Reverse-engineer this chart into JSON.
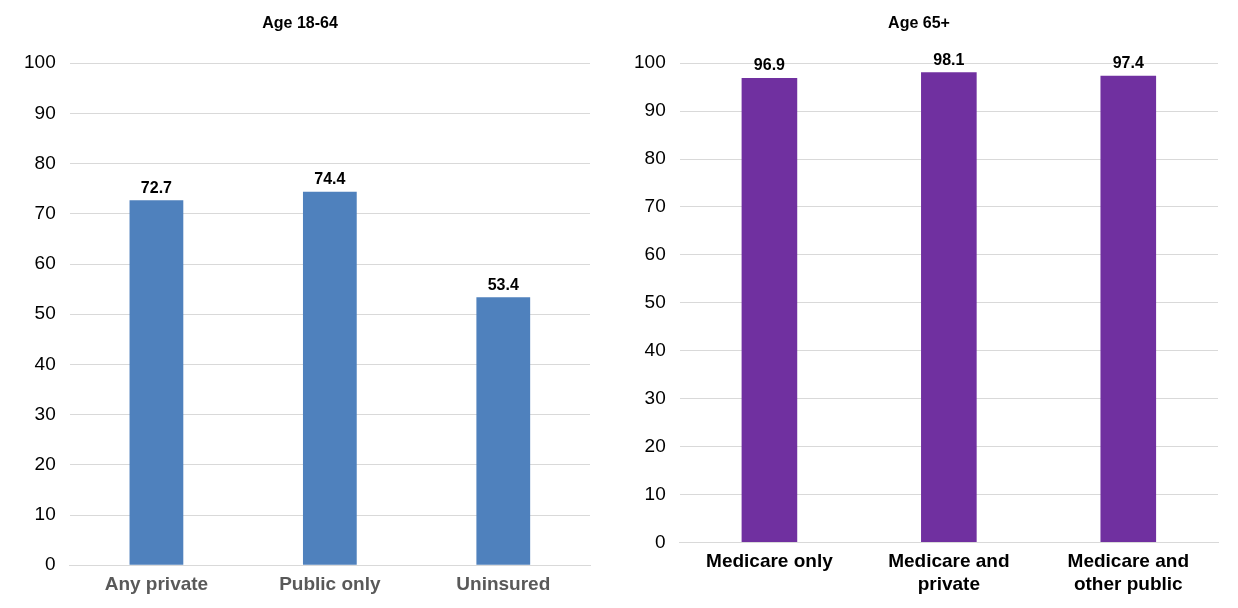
{
  "chart_data": [
    {
      "type": "bar",
      "title": "Age 18-64",
      "categories": [
        "Any private",
        "Public only",
        "Uninsured"
      ],
      "values": [
        72.7,
        74.4,
        53.4
      ],
      "color": "#4f81bd",
      "ylim": [
        0,
        100
      ],
      "yticks": [
        0,
        10,
        20,
        30,
        40,
        50,
        60,
        70,
        80,
        90,
        100
      ],
      "grid": "y",
      "data_labels": true
    },
    {
      "type": "bar",
      "title": "Age 65+",
      "categories": [
        "Medicare only",
        "Medicare and private",
        "Medicare and other public"
      ],
      "values": [
        96.9,
        98.1,
        97.4
      ],
      "color": "#7030a0",
      "ylim": [
        0,
        100
      ],
      "yticks": [
        0,
        10,
        20,
        30,
        40,
        50,
        60,
        70,
        80,
        90,
        100
      ],
      "grid": "y",
      "data_labels": true
    }
  ]
}
